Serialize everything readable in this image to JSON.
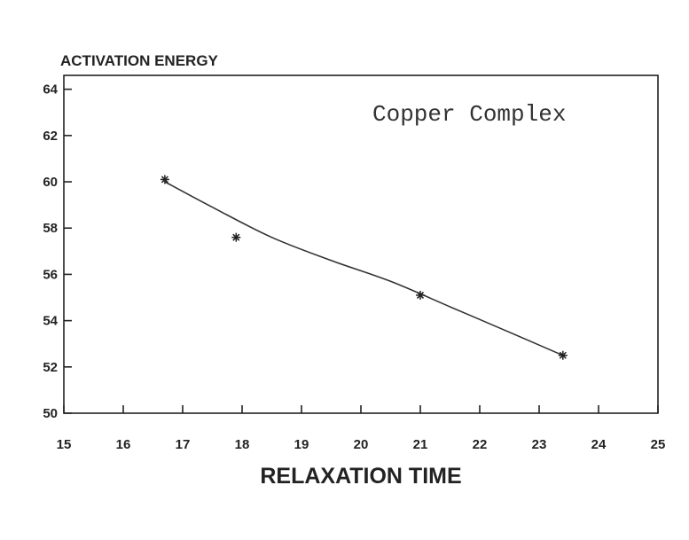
{
  "chart_data": {
    "type": "scatter",
    "ylabel": "ACTIVATION ENERGY",
    "xlabel": "RELAXATION TIME",
    "annotation": "Copper Complex",
    "xlim": [
      15,
      25
    ],
    "ylim": [
      50,
      65
    ],
    "xticks": [
      15,
      16,
      17,
      18,
      19,
      20,
      21,
      22,
      23,
      24,
      25
    ],
    "yticks": [
      50,
      52,
      54,
      56,
      58,
      60,
      62,
      64
    ],
    "grid": false,
    "points": [
      {
        "x": 16.7,
        "y": 60.1
      },
      {
        "x": 17.9,
        "y": 57.6
      },
      {
        "x": 21.0,
        "y": 55.1
      },
      {
        "x": 23.4,
        "y": 52.5
      }
    ],
    "fit_curve": [
      {
        "x": 16.7,
        "y": 60.0
      },
      {
        "x": 17.5,
        "y": 58.9
      },
      {
        "x": 18.5,
        "y": 57.6
      },
      {
        "x": 19.5,
        "y": 56.6
      },
      {
        "x": 20.5,
        "y": 55.7
      },
      {
        "x": 21.5,
        "y": 54.6
      },
      {
        "x": 22.5,
        "y": 53.5
      },
      {
        "x": 23.4,
        "y": 52.5
      }
    ],
    "marker": "asterisk",
    "line_color": "#333333"
  }
}
